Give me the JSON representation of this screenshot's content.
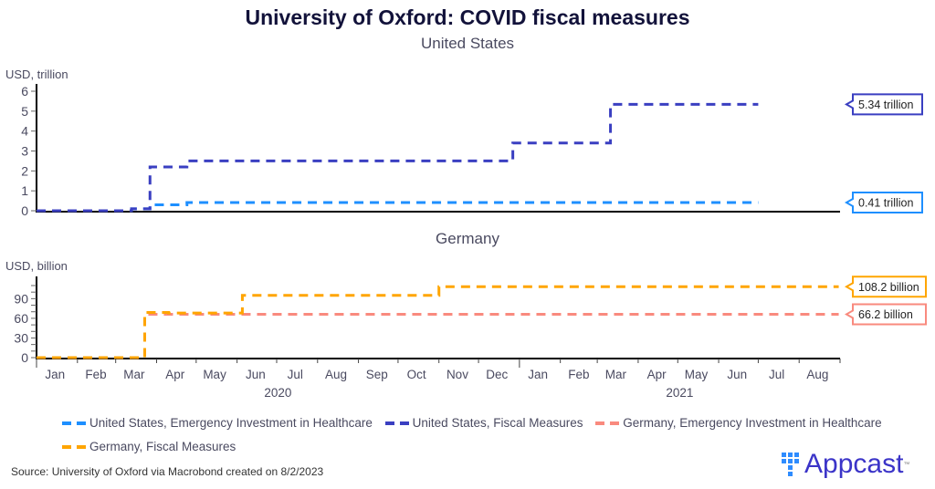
{
  "header": {
    "title": "University of Oxford: COVID fiscal measures"
  },
  "footer": {
    "source": "Source: University of Oxford via Macrobond created on 8/2/2023",
    "logo_text": "Appcast",
    "logo_tm": "™"
  },
  "chart_data": [
    {
      "type": "line",
      "step": true,
      "title": "United States",
      "ylabel": "USD, trillion",
      "ylim": [
        0,
        6
      ],
      "yticks": [
        "0",
        "1",
        "2",
        "3",
        "4",
        "5",
        "6"
      ],
      "x_range": [
        "2020-01-01",
        "2021-08-31"
      ],
      "series": [
        {
          "name": "United States, Emergency Investment in Healthcare",
          "color": "#1e8fff",
          "points": [
            [
              "2020-01-01",
              0
            ],
            [
              "2020-03-13",
              0.1
            ],
            [
              "2020-03-27",
              0.3
            ],
            [
              "2020-04-24",
              0.41
            ],
            [
              "2021-07-01",
              0.41
            ]
          ],
          "end_label": "0.41 trillion"
        },
        {
          "name": "United States, Fiscal Measures",
          "color": "#3a3fc1",
          "points": [
            [
              "2020-01-01",
              0
            ],
            [
              "2020-03-13",
              0.1
            ],
            [
              "2020-03-27",
              2.2
            ],
            [
              "2020-04-24",
              2.5
            ],
            [
              "2020-12-27",
              3.4
            ],
            [
              "2021-03-11",
              5.34
            ],
            [
              "2021-07-01",
              5.34
            ]
          ],
          "end_label": "5.34 trillion"
        }
      ]
    },
    {
      "type": "line",
      "step": true,
      "title": "Germany",
      "ylabel": "USD, billion",
      "ylim": [
        0,
        110
      ],
      "yticks": [
        "0",
        "30",
        "60",
        "90"
      ],
      "x_range": [
        "2020-01-01",
        "2021-08-31"
      ],
      "series": [
        {
          "name": "Germany, Emergency Investment in Healthcare",
          "color": "#f98a7e",
          "points": [
            [
              "2020-01-01",
              0
            ],
            [
              "2020-03-23",
              66.2
            ],
            [
              "2021-08-31",
              66.2
            ]
          ],
          "end_label": "66.2 billion"
        },
        {
          "name": "Germany, Fiscal Measures",
          "color": "#ffa500",
          "points": [
            [
              "2020-01-01",
              0
            ],
            [
              "2020-03-23",
              69
            ],
            [
              "2020-04-10",
              68
            ],
            [
              "2020-06-05",
              95
            ],
            [
              "2020-11-01",
              108.2
            ],
            [
              "2021-08-31",
              108.2
            ]
          ],
          "end_label": "108.2 billion"
        }
      ]
    }
  ],
  "xaxis": {
    "months": [
      "Jan",
      "Feb",
      "Mar",
      "Apr",
      "May",
      "Jun",
      "Jul",
      "Aug",
      "Sep",
      "Oct",
      "Nov",
      "Dec",
      "Jan",
      "Feb",
      "Mar",
      "Apr",
      "May",
      "Jun",
      "Jul",
      "Aug"
    ],
    "years": [
      "2020",
      "2021"
    ]
  },
  "legend": [
    {
      "label": "United States, Emergency Investment in Healthcare",
      "color": "#1e8fff"
    },
    {
      "label": "United States, Fiscal Measures",
      "color": "#3a3fc1"
    },
    {
      "label": "Germany, Emergency Investment in Healthcare",
      "color": "#f98a7e"
    },
    {
      "label": "Germany, Fiscal Measures",
      "color": "#ffa500"
    }
  ]
}
